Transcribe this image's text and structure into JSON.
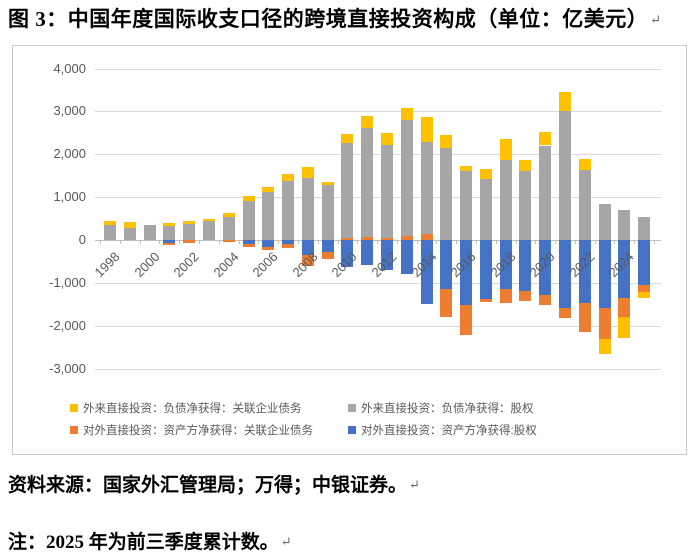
{
  "title": "图 3：中国年度国际收支口径的跨境直接投资构成（单位：亿美元）",
  "paragraph_mark": "↵",
  "source_note": "资料来源：国家外汇管理局；万得；中银证券。",
  "footnote": "注：2025 年为前三季度累计数。",
  "colors": {
    "grid": "#d9d9d9",
    "axis_line": "#bfbfbf",
    "axis_text": "#595959",
    "legend_text": "#595959",
    "frame_border": "#c9c9c9"
  },
  "chart_data": {
    "type": "bar",
    "stacked": true,
    "title": "中国年度国际收支口径的跨境直接投资构成",
    "unit": "亿美元",
    "grid": true,
    "legend_position": "bottom",
    "ylim": [
      -3000,
      4000
    ],
    "ytick_step": 1000,
    "yticks": [
      4000,
      3000,
      2000,
      1000,
      0,
      -1000,
      -2000,
      -3000
    ],
    "xticks": [
      1998,
      2000,
      2002,
      2004,
      2006,
      2008,
      2010,
      2012,
      2014,
      2016,
      2018,
      2020,
      2022,
      2024
    ],
    "years": [
      1998,
      1999,
      2000,
      2001,
      2002,
      2003,
      2004,
      2005,
      2006,
      2007,
      2008,
      2009,
      2010,
      2011,
      2012,
      2013,
      2014,
      2015,
      2016,
      2017,
      2018,
      2019,
      2020,
      2021,
      2022,
      2023,
      2024,
      2025
    ],
    "series": [
      {
        "key": "fdi-affiliate-debt",
        "name": "外来直接投资：负债净获得：关联企业债务",
        "color": "#FFC000",
        "values": [
          95,
          145,
          0,
          75,
          70,
          55,
          80,
          115,
          115,
          165,
          255,
          70,
          210,
          285,
          280,
          280,
          575,
          310,
          115,
          235,
          490,
          255,
          325,
          450,
          255,
          -350,
          -505,
          -125
        ]
      },
      {
        "key": "fdi-equity",
        "name": "外来直接投资：负债净获得：股权",
        "color": "#A6A6A6",
        "values": [
          350,
          275,
          345,
          325,
          380,
          435,
          545,
          910,
          1120,
          1380,
          1450,
          1285,
          2220,
          2540,
          2165,
          2700,
          2155,
          2140,
          1610,
          1425,
          1870,
          1610,
          2205,
          3015,
          1635,
          840,
          700,
          530
        ]
      },
      {
        "key": "odi-affiliate-debt",
        "name": "对外直接投资：资产方净获得：关联企业债务",
        "color": "#ED7D31",
        "values": [
          0,
          0,
          0,
          -45,
          -60,
          0,
          -55,
          -70,
          -70,
          -95,
          -250,
          -180,
          45,
          70,
          55,
          100,
          140,
          -655,
          -700,
          -80,
          -320,
          -220,
          -235,
          -235,
          -660,
          -720,
          -445,
          -170
        ]
      },
      {
        "key": "odi-equity",
        "name": "对外直接投资：资产方净获得:股权",
        "color": "#4472C4",
        "values": [
          0,
          0,
          0,
          -70,
          0,
          0,
          0,
          -95,
          -165,
          -85,
          -350,
          -275,
          -630,
          -585,
          -700,
          -795,
          -1495,
          -1145,
          -1520,
          -1365,
          -1150,
          -1200,
          -1280,
          -1580,
          -1480,
          -1580,
          -1350,
          -1050
        ]
      }
    ],
    "stack_order": [
      3,
      2,
      1,
      0
    ]
  }
}
